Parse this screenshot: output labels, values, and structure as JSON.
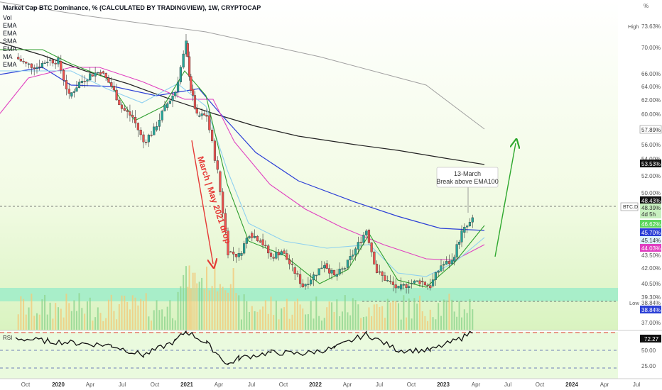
{
  "header": {
    "title": "Market Cap BTC Dominance, % (CALCULATED BY TRADINGVIEW), 1W, CRYPTOCAP",
    "indicators": [
      "Vol",
      "EMA",
      "EMA",
      "SMA",
      "EMA",
      "MA",
      "EMA"
    ]
  },
  "axis": {
    "unit_label": "%",
    "y_ticks": [
      "70.00%",
      "66.00%",
      "64.00%",
      "62.00%",
      "60.00%",
      "56.00%",
      "54.00%",
      "52.00%",
      "50.00%",
      "42.00%",
      "40.50%",
      "37.00%"
    ],
    "x_ticks": [
      "Oct",
      "2020",
      "Apr",
      "Jul",
      "Oct",
      "2021",
      "Apr",
      "Jul",
      "Oct",
      "2022",
      "Apr",
      "Jul",
      "Oct",
      "2023",
      "Apr",
      "Jul",
      "Oct",
      "2024",
      "Apr",
      "Jul"
    ],
    "rsi_ticks": [
      "50.00",
      "25.00"
    ]
  },
  "price_labels": {
    "high_tag": "High",
    "high_value": "73.63%",
    "ma_long": "57.89%",
    "ma_200": "53.53%",
    "btc_d_tag": "BTC.D",
    "btc_d_value": "48.43%",
    "btc_d_close": "48.39%",
    "btc_d_countdown": "4d 5h",
    "ema_green": "46.62%",
    "ema_blue": "45.70%",
    "ema_lightblue": "45.14%",
    "ema_magenta": "44.03%",
    "ema_magenta_2": "43.50%",
    "support_1": "39.30%",
    "low_tag": "Low",
    "low_value": "38.84%",
    "low_value_2": "38.84%",
    "rsi_tag": "RSI",
    "rsi_value": "72.27"
  },
  "annotations": {
    "drop_text": "March | May 2021 drop",
    "callout_line1": "13-March",
    "callout_line2": "Break above EMA100"
  },
  "colors": {
    "up": "#26a69a",
    "down": "#ef5350",
    "ema_green": "#2e9e2e",
    "ema_blue": "#2b3fd6",
    "ema_magenta": "#e040c0",
    "ema_lightblue": "#8ed0f0",
    "ma_black": "#222222",
    "ma_gray": "#a0a0a0",
    "arrow_green": "#2ea82e",
    "arrow_red": "#e53935"
  },
  "chart_data": {
    "type": "line",
    "title": "Market Cap BTC Dominance, % (CALCULATED BY TRADINGVIEW), 1W, CRYPTOCAP",
    "xlabel": "",
    "ylabel": "%",
    "x_range": [
      "2019-09",
      "2024-07"
    ],
    "ylim": [
      36.5,
      74
    ],
    "series": [
      {
        "name": "BTC.D",
        "points": [
          [
            "2019-09-01",
            68.8
          ],
          [
            "2019-10-01",
            67.9
          ],
          [
            "2019-11-01",
            67.6
          ],
          [
            "2019-12-01",
            68.4
          ],
          [
            "2020-01-01",
            68.3
          ],
          [
            "2020-02-01",
            63.9
          ],
          [
            "2020-03-01",
            65.6
          ],
          [
            "2020-04-01",
            66.6
          ],
          [
            "2020-05-01",
            67.0
          ],
          [
            "2020-06-01",
            65.2
          ],
          [
            "2020-07-01",
            62.4
          ],
          [
            "2020-08-01",
            61.3
          ],
          [
            "2020-09-01",
            58.2
          ],
          [
            "2020-10-01",
            59.7
          ],
          [
            "2020-11-01",
            62.5
          ],
          [
            "2020-12-01",
            64.5
          ],
          [
            "2021-01-01",
            70.5
          ],
          [
            "2021-01-15",
            64.8
          ],
          [
            "2021-02-01",
            61.4
          ],
          [
            "2021-03-01",
            61.5
          ],
          [
            "2021-04-01",
            54.5
          ],
          [
            "2021-05-01",
            44.5
          ],
          [
            "2021-06-01",
            44.0
          ],
          [
            "2021-07-01",
            46.8
          ],
          [
            "2021-08-01",
            46.0
          ],
          [
            "2021-09-01",
            43.8
          ],
          [
            "2021-10-01",
            44.6
          ],
          [
            "2021-11-01",
            42.5
          ],
          [
            "2021-12-01",
            40.2
          ],
          [
            "2022-01-01",
            41.5
          ],
          [
            "2022-02-01",
            43.0
          ],
          [
            "2022-03-01",
            41.4
          ],
          [
            "2022-04-01",
            42.5
          ],
          [
            "2022-05-01",
            44.8
          ],
          [
            "2022-06-01",
            47.2
          ],
          [
            "2022-07-01",
            42.0
          ],
          [
            "2022-08-01",
            40.8
          ],
          [
            "2022-09-01",
            39.8
          ],
          [
            "2022-10-01",
            40.5
          ],
          [
            "2022-11-01",
            40.8
          ],
          [
            "2022-12-01",
            40.2
          ],
          [
            "2023-01-01",
            42.8
          ],
          [
            "2023-02-01",
            43.3
          ],
          [
            "2023-03-01",
            46.9
          ],
          [
            "2023-04-01",
            48.39
          ]
        ]
      }
    ],
    "rsi": [
      [
        "2019-09-01",
        62
      ],
      [
        "2019-12-01",
        58
      ],
      [
        "2020-03-01",
        55
      ],
      [
        "2020-06-01",
        52
      ],
      [
        "2020-09-01",
        38
      ],
      [
        "2020-12-01",
        58
      ],
      [
        "2021-01-01",
        72
      ],
      [
        "2021-03-01",
        55
      ],
      [
        "2021-05-01",
        25
      ],
      [
        "2021-06-01",
        34
      ],
      [
        "2021-09-01",
        42
      ],
      [
        "2021-12-01",
        40
      ],
      [
        "2022-03-01",
        48
      ],
      [
        "2022-06-01",
        68
      ],
      [
        "2022-09-01",
        45
      ],
      [
        "2022-12-01",
        45
      ],
      [
        "2023-03-01",
        62
      ],
      [
        "2023-04-01",
        72.27
      ]
    ],
    "levels": {
      "dashed_current": 48.39,
      "low": 38.84,
      "support_band": [
        39.0,
        40.2
      ]
    }
  }
}
